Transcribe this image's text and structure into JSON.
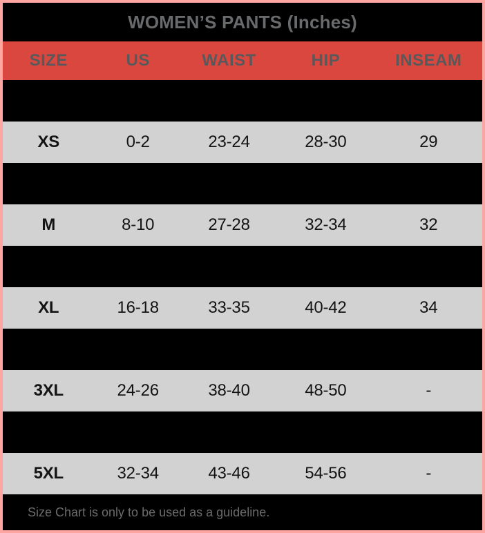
{
  "title": "WOMEN’S PANTS (Inches)",
  "footer_note": "Size Chart is only to be used as a guideline.",
  "colors": {
    "border_pink": "#FCA5A1",
    "header_red": "#D9473F",
    "header_text_gray": "#59595B",
    "title_text_gray": "#696A6C",
    "row_gray": "#D2D2D2",
    "row_black": "#000000",
    "data_text": "#141414",
    "footer_text_gray": "#6B6B6B"
  },
  "chart_data": {
    "type": "table",
    "title": "WOMEN’S PANTS (Inches)",
    "columns": [
      "SIZE",
      "US",
      "WAIST",
      "HIP",
      "INSEAM"
    ],
    "rows": [
      {
        "blackout": true,
        "cells": [
          "",
          "",
          "",
          "",
          ""
        ]
      },
      {
        "blackout": false,
        "cells": [
          "XS",
          "0-2",
          "23-24",
          "28-30",
          "29"
        ]
      },
      {
        "blackout": true,
        "cells": [
          "",
          "",
          "",
          "",
          ""
        ]
      },
      {
        "blackout": false,
        "cells": [
          "M",
          "8-10",
          "27-28",
          "32-34",
          "32"
        ]
      },
      {
        "blackout": true,
        "cells": [
          "",
          "",
          "",
          "",
          ""
        ]
      },
      {
        "blackout": false,
        "cells": [
          "XL",
          "16-18",
          "33-35",
          "40-42",
          "34"
        ]
      },
      {
        "blackout": true,
        "cells": [
          "",
          "",
          "",
          "",
          ""
        ]
      },
      {
        "blackout": false,
        "cells": [
          "3XL",
          "24-26",
          "38-40",
          "48-50",
          "-"
        ]
      },
      {
        "blackout": true,
        "cells": [
          "",
          "",
          "",
          "",
          ""
        ]
      },
      {
        "blackout": false,
        "cells": [
          "5XL",
          "32-34",
          "43-46",
          "54-56",
          "-"
        ]
      }
    ],
    "note": "Size Chart is only to be used as a guideline.",
    "layout": {
      "grid": false,
      "legend": "none"
    }
  }
}
